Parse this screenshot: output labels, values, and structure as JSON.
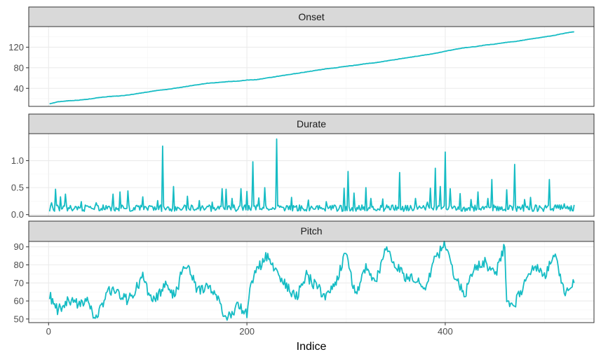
{
  "chart_data": {
    "type": "line",
    "facet_layout": "stacked-rows",
    "xlabel": "Indice",
    "xlim": [
      -20,
      550
    ],
    "x_ticks": [
      0,
      200,
      400
    ],
    "grid": true,
    "legend": "none",
    "colors": {
      "line": "#16bcc4",
      "strip_bg": "#d9d9d9",
      "panel_border": "#333333",
      "grid_major": "#ebebeb",
      "grid_minor": "#f5f5f5"
    },
    "panels": [
      {
        "strip": "Onset",
        "ylim": [
          5,
          160
        ],
        "y_ticks": [
          40,
          80,
          120
        ],
        "x": [
          1,
          10,
          20,
          30,
          40,
          50,
          60,
          70,
          80,
          90,
          100,
          110,
          120,
          130,
          140,
          150,
          160,
          170,
          180,
          190,
          200,
          210,
          220,
          230,
          240,
          250,
          260,
          270,
          280,
          290,
          300,
          310,
          320,
          330,
          340,
          350,
          360,
          370,
          380,
          390,
          400,
          410,
          420,
          430,
          440,
          450,
          460,
          470,
          480,
          490,
          500,
          510,
          520,
          530
        ],
        "values": [
          10,
          14,
          16,
          17,
          19,
          22,
          24,
          25,
          27,
          30,
          33,
          36,
          38,
          41,
          44,
          47,
          50,
          51,
          53,
          54,
          56,
          57,
          60,
          63,
          66,
          69,
          72,
          75,
          78,
          80,
          83,
          85,
          88,
          90,
          93,
          96,
          99,
          102,
          105,
          108,
          112,
          116,
          119,
          121,
          124,
          126,
          129,
          131,
          134,
          137,
          140,
          143,
          147,
          150
        ]
      },
      {
        "strip": "Durate",
        "ylim": [
          -0.03,
          1.5
        ],
        "y_ticks": [
          0.0,
          0.5,
          1.0
        ],
        "y_tick_labels": [
          "0.0",
          "0.5",
          "1.0"
        ],
        "baseline": 0.12,
        "n_points": 530,
        "spikes": [
          [
            3,
            0.22
          ],
          [
            7,
            0.47
          ],
          [
            12,
            0.33
          ],
          [
            17,
            0.38
          ],
          [
            33,
            0.24
          ],
          [
            48,
            0.22
          ],
          [
            65,
            0.38
          ],
          [
            72,
            0.42
          ],
          [
            80,
            0.44
          ],
          [
            95,
            0.33
          ],
          [
            110,
            0.26
          ],
          [
            115,
            1.27
          ],
          [
            126,
            0.52
          ],
          [
            140,
            0.34
          ],
          [
            152,
            0.26
          ],
          [
            165,
            0.23
          ],
          [
            175,
            0.48
          ],
          [
            179,
            0.47
          ],
          [
            185,
            0.3
          ],
          [
            194,
            0.48
          ],
          [
            200,
            0.43
          ],
          [
            206,
            0.98
          ],
          [
            212,
            0.31
          ],
          [
            218,
            0.5
          ],
          [
            230,
            1.4
          ],
          [
            245,
            0.32
          ],
          [
            262,
            0.27
          ],
          [
            280,
            0.24
          ],
          [
            298,
            0.49
          ],
          [
            302,
            0.8
          ],
          [
            308,
            0.4
          ],
          [
            320,
            0.5
          ],
          [
            325,
            0.3
          ],
          [
            337,
            0.29
          ],
          [
            354,
            0.78
          ],
          [
            370,
            0.3
          ],
          [
            382,
            0.23
          ],
          [
            385,
            0.49
          ],
          [
            390,
            0.86
          ],
          [
            395,
            0.52
          ],
          [
            400,
            1.16
          ],
          [
            405,
            0.48
          ],
          [
            415,
            0.39
          ],
          [
            426,
            0.28
          ],
          [
            433,
            0.42
          ],
          [
            443,
            0.3
          ],
          [
            447,
            0.65
          ],
          [
            462,
            0.46
          ],
          [
            470,
            0.93
          ],
          [
            480,
            0.28
          ],
          [
            486,
            0.32
          ],
          [
            505,
            0.65
          ],
          [
            520,
            0.2
          ],
          [
            530,
            0.18
          ]
        ]
      },
      {
        "strip": "Pitch",
        "ylim": [
          48,
          93
        ],
        "y_ticks": [
          50,
          60,
          70,
          80,
          90
        ],
        "x": [
          1,
          5,
          10,
          20,
          30,
          40,
          45,
          50,
          60,
          70,
          80,
          95,
          100,
          105,
          110,
          118,
          125,
          130,
          135,
          140,
          150,
          160,
          170,
          175,
          180,
          190,
          200,
          205,
          210,
          220,
          230,
          240,
          250,
          260,
          270,
          280,
          290,
          300,
          305,
          310,
          320,
          330,
          340,
          350,
          360,
          370,
          380,
          390,
          400,
          410,
          420,
          430,
          440,
          450,
          460,
          462,
          468,
          480,
          490,
          500,
          510,
          520,
          530
        ],
        "values": [
          64,
          57,
          55,
          60,
          58,
          62,
          50,
          52,
          66,
          65,
          60,
          73,
          66,
          60,
          62,
          69,
          63,
          67,
          78,
          79,
          66,
          68,
          62,
          55,
          50,
          57,
          53,
          72,
          77,
          85,
          76,
          68,
          62,
          74,
          68,
          62,
          71,
          87,
          73,
          64,
          79,
          71,
          89,
          80,
          73,
          72,
          66,
          84,
          91,
          73,
          64,
          78,
          82,
          74,
          90,
          58,
          56,
          69,
          80,
          74,
          86,
          64,
          70
        ]
      }
    ]
  }
}
